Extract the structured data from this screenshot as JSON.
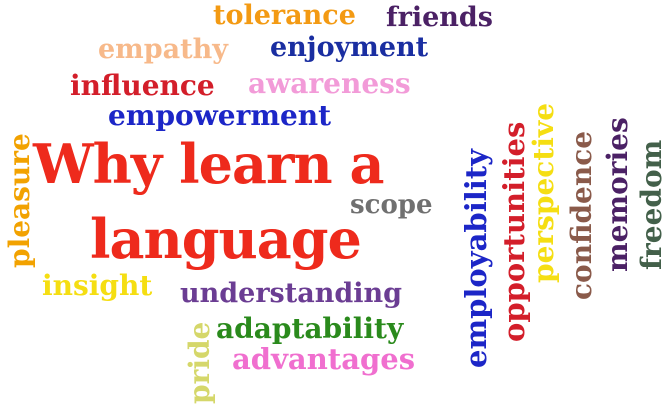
{
  "wordcloud": {
    "title_line1": "Why learn a",
    "title_line2": "language",
    "words": {
      "tolerance": "tolerance",
      "friends": "friends",
      "empathy": "empathy",
      "enjoyment": "enjoyment",
      "influence": "influence",
      "awareness": "awareness",
      "empowerment": "empowerment",
      "pleasure": "pleasure",
      "scope": "scope",
      "insight": "insight",
      "understanding": "understanding",
      "adaptability": "adaptability",
      "advantages": "advantages",
      "pride": "pride",
      "employability": "employability",
      "opportunities": "opportunities",
      "perspective": "perspective",
      "confidence": "confidence",
      "memories": "memories",
      "freedom": "freedom"
    },
    "colors": {
      "title": "#ee2a1c",
      "tolerance": "#f39a13",
      "friends": "#4b2165",
      "empathy": "#f7b98a",
      "enjoyment": "#1a2ea1",
      "influence": "#d31e2a",
      "awareness": "#f29bd8",
      "empowerment": "#1c26c7",
      "pleasure": "#f2a200",
      "scope": "#707070",
      "insight": "#f5de12",
      "understanding": "#6b3d93",
      "adaptability": "#2a8a1c",
      "advantages": "#f06fcf",
      "pride": "#d5d76a",
      "employability": "#1c26c7",
      "opportunities": "#d31e2a",
      "perspective": "#f5de12",
      "confidence": "#8a5a4a",
      "memories": "#4b2165",
      "freedom": "#43604a"
    }
  }
}
